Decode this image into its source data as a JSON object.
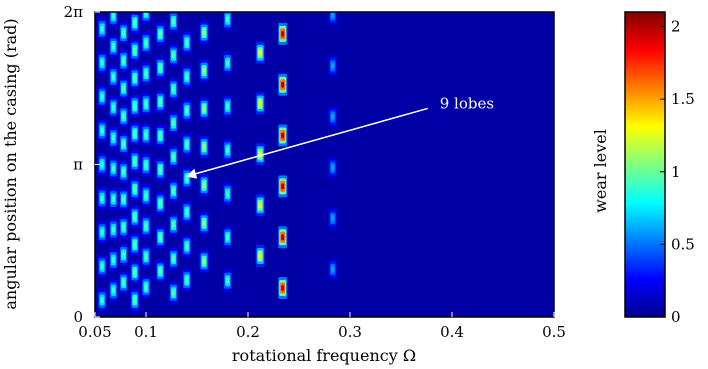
{
  "chart_data": {
    "type": "heatmap",
    "title": "",
    "xlabel": "rotational frequency Ω",
    "ylabel": "angular position on the casing (rad)",
    "xlim": [
      0.05,
      0.5
    ],
    "ylim": [
      0,
      6.2832
    ],
    "x_ticks": [
      {
        "value": 0.05,
        "label": "0.05"
      },
      {
        "value": 0.1,
        "label": "0.1"
      },
      {
        "value": 0.2,
        "label": "0.2"
      },
      {
        "value": 0.3,
        "label": "0.3"
      },
      {
        "value": 0.4,
        "label": "0.4"
      },
      {
        "value": 0.5,
        "label": "0.5"
      }
    ],
    "y_ticks": [
      {
        "value": 0,
        "label": "0"
      },
      {
        "value": 3.1416,
        "label": "π"
      },
      {
        "value": 6.2832,
        "label": "2π"
      }
    ],
    "colorbar": {
      "label": "wear level",
      "range": [
        0,
        2.1
      ],
      "colormap": "jet",
      "ticks": [
        {
          "value": 0,
          "label": "0"
        },
        {
          "value": 0.5,
          "label": "0.5"
        },
        {
          "value": 1,
          "label": "1"
        },
        {
          "value": 1.5,
          "label": "1.5"
        },
        {
          "value": 2,
          "label": "2"
        }
      ]
    },
    "background_level": 0.08,
    "columns": [
      {
        "x": 0.057,
        "lobes": 9,
        "peak": 0.9
      },
      {
        "x": 0.068,
        "lobes": 10,
        "peak": 0.9
      },
      {
        "x": 0.078,
        "lobes": 11,
        "peak": 0.95
      },
      {
        "x": 0.089,
        "lobes": 11,
        "peak": 1.0
      },
      {
        "x": 0.1,
        "lobes": 10,
        "peak": 0.95
      },
      {
        "x": 0.114,
        "lobes": 9,
        "peak": 1.0
      },
      {
        "x": 0.127,
        "lobes": 9,
        "peak": 0.95
      },
      {
        "x": 0.14,
        "lobes": 9,
        "peak": 0.95
      },
      {
        "x": 0.157,
        "lobes": 8,
        "peak": 1.1
      },
      {
        "x": 0.18,
        "lobes": 7,
        "peak": 0.9
      },
      {
        "x": 0.212,
        "lobes": 6,
        "peak": 1.3
      },
      {
        "x": 0.234,
        "lobes": 6,
        "peak": 2.0
      },
      {
        "x": 0.283,
        "lobes": 6,
        "peak": 0.6
      }
    ],
    "annotations": [
      {
        "text": "9 lobes",
        "text_x": 0.388,
        "text_y": 4.4,
        "arrow_to_x": 0.14,
        "arrow_to_y": 2.9
      }
    ]
  }
}
